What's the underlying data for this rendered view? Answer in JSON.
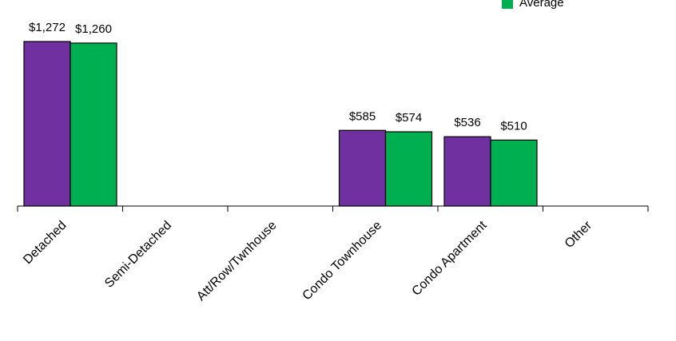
{
  "chart_data": {
    "type": "bar",
    "categories": [
      "Detached",
      "Semi-Detached",
      "Att/Row/Twnhouse",
      "Condo Townhouse",
      "Condo Apartment",
      "Other"
    ],
    "series": [
      {
        "color": "#7030a0",
        "values": [
          1272,
          null,
          null,
          585,
          536,
          null
        ],
        "labels": [
          "$1,272",
          "",
          "",
          "$585",
          "$536",
          ""
        ]
      },
      {
        "name": "Average",
        "color": "#00b050",
        "values": [
          1260,
          null,
          null,
          574,
          510,
          null
        ],
        "labels": [
          "$1,260",
          "",
          "",
          "$574",
          "$510",
          ""
        ]
      }
    ],
    "ylim": [
      0,
      1400
    ],
    "grid": false,
    "legend": "top-right"
  },
  "legend": {
    "label": "Average"
  }
}
